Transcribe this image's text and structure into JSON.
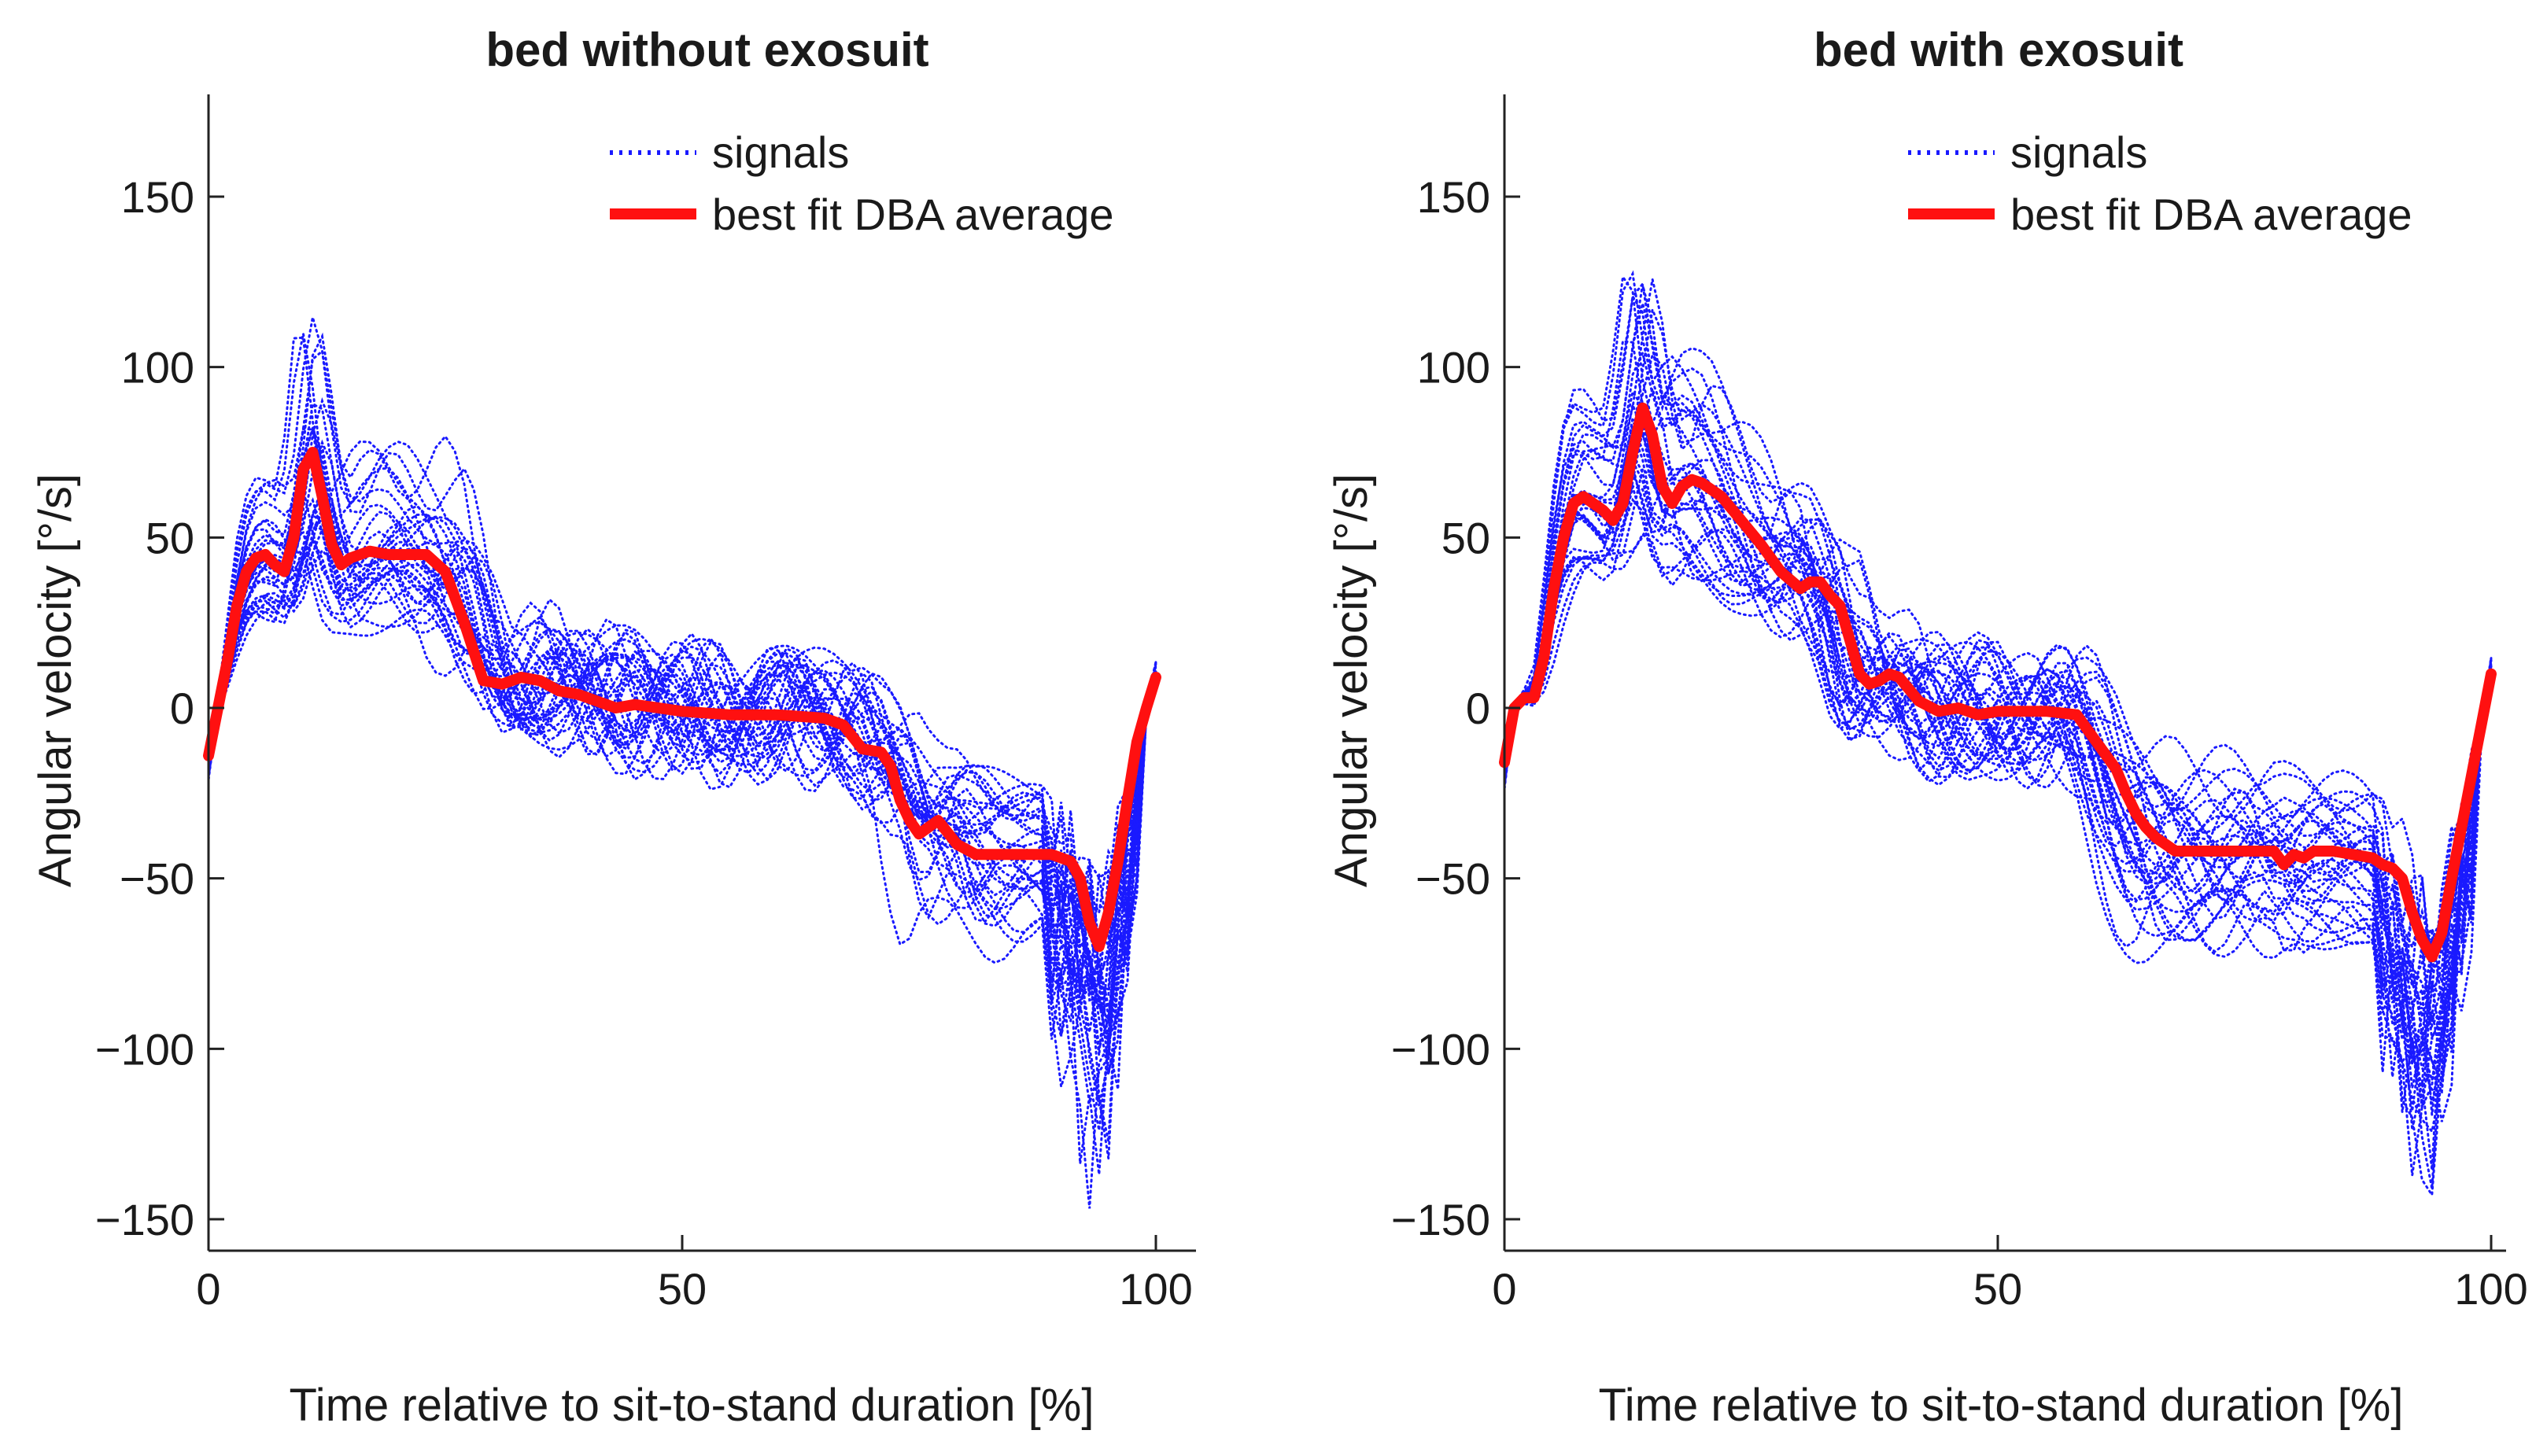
{
  "charts": [
    {
      "title": "bed without exosuit",
      "xlabel": "Time relative to sit-to-stand duration [%]",
      "ylabel": "Angular velocity [°/s]",
      "legend": {
        "signals": "signals",
        "average": "best fit DBA average"
      },
      "xticks": [
        "0",
        "50",
        "100"
      ],
      "yticks": [
        "150",
        "100",
        "50",
        "0",
        "−50",
        "−100",
        "−150"
      ]
    },
    {
      "title": "bed with exosuit",
      "xlabel": "Time relative to sit-to-stand duration [%]",
      "ylabel": "Angular velocity [°/s]",
      "legend": {
        "signals": "signals",
        "average": "best fit DBA average"
      },
      "xticks": [
        "0",
        "50",
        "100"
      ],
      "yticks": [
        "150",
        "100",
        "50",
        "0",
        "−50",
        "−100",
        "−150"
      ]
    }
  ],
  "chart_data": [
    {
      "type": "line",
      "title": "bed without exosuit",
      "xlabel": "Time relative to sit-to-stand duration [%]",
      "ylabel": "Angular velocity [°/s]",
      "xlim": [
        0,
        104
      ],
      "ylim": [
        -160,
        180
      ],
      "xticks": [
        0,
        50,
        100
      ],
      "yticks": [
        150,
        100,
        50,
        0,
        -50,
        -100,
        -150
      ],
      "legend_position": "top-right",
      "colors": {
        "signals": "#1a1aff",
        "average": "#ff1010"
      },
      "series": [
        {
          "name": "best fit DBA average",
          "style": "solid",
          "x": [
            0,
            1,
            2,
            3,
            4,
            5,
            6,
            7,
            8,
            9,
            10,
            11,
            12,
            13,
            14,
            15,
            17,
            19,
            21,
            23,
            25,
            27,
            29,
            31,
            33,
            35,
            37,
            39,
            41,
            43,
            45,
            50,
            55,
            60,
            65,
            67,
            69,
            71,
            72,
            73,
            74,
            75,
            76,
            77,
            79,
            81,
            83,
            85,
            87,
            89,
            91,
            92,
            93,
            94,
            95,
            96,
            97,
            98,
            99,
            100
          ],
          "y": [
            -14,
            0,
            14,
            30,
            40,
            44,
            45,
            42,
            40,
            50,
            70,
            75,
            62,
            48,
            42,
            44,
            46,
            45,
            45,
            45,
            40,
            25,
            8,
            7,
            9,
            8,
            5,
            4,
            2,
            0,
            1,
            -1,
            -2,
            -2,
            -3,
            -5,
            -12,
            -13,
            -17,
            -27,
            -33,
            -37,
            -35,
            -33,
            -40,
            -43,
            -43,
            -43,
            -43,
            -43,
            -45,
            -50,
            -63,
            -70,
            -60,
            -45,
            -27,
            -10,
            0,
            9
          ]
        },
        {
          "name": "signals",
          "style": "dotted",
          "count": 30
        }
      ]
    },
    {
      "type": "line",
      "title": "bed with exosuit",
      "xlabel": "Time relative to sit-to-stand duration [%]",
      "ylabel": "Angular velocity [°/s]",
      "xlim": [
        0,
        103
      ],
      "ylim": [
        -160,
        180
      ],
      "xticks": [
        0,
        50,
        100
      ],
      "yticks": [
        150,
        100,
        50,
        0,
        -50,
        -100,
        -150
      ],
      "legend_position": "top-right",
      "colors": {
        "signals": "#1a1aff",
        "average": "#ff1010"
      },
      "series": [
        {
          "name": "best fit DBA average",
          "style": "solid",
          "x": [
            0,
            1,
            2,
            3,
            4,
            5,
            6,
            7,
            8,
            9,
            10,
            11,
            12,
            13,
            14,
            15,
            16,
            17,
            18,
            19,
            20,
            22,
            24,
            26,
            28,
            30,
            31,
            32,
            33,
            34,
            35,
            36,
            37,
            38,
            39,
            40,
            42,
            44,
            46,
            48,
            50,
            52,
            55,
            58,
            60,
            62,
            63,
            64,
            65,
            66,
            67,
            68,
            70,
            72,
            74,
            76,
            78,
            79,
            80,
            81,
            82,
            84,
            86,
            88,
            89,
            90,
            91,
            92,
            93,
            94,
            95,
            96,
            97,
            98,
            99,
            100
          ],
          "y": [
            -16,
            0,
            3,
            3,
            15,
            35,
            50,
            60,
            62,
            60,
            58,
            55,
            60,
            75,
            88,
            80,
            65,
            60,
            65,
            67,
            66,
            62,
            55,
            48,
            40,
            35,
            37,
            37,
            33,
            30,
            20,
            10,
            7,
            8,
            10,
            9,
            2,
            -1,
            0,
            -2,
            -1,
            -1,
            -1,
            -2,
            -10,
            -18,
            -25,
            -31,
            -35,
            -38,
            -40,
            -42,
            -42,
            -42,
            -42,
            -42,
            -42,
            -46,
            -43,
            -44,
            -42,
            -42,
            -43,
            -44,
            -46,
            -47,
            -50,
            -60,
            -68,
            -73,
            -66,
            -50,
            -35,
            -20,
            -5,
            10
          ]
        },
        {
          "name": "signals",
          "style": "dotted",
          "count": 30
        }
      ]
    }
  ]
}
